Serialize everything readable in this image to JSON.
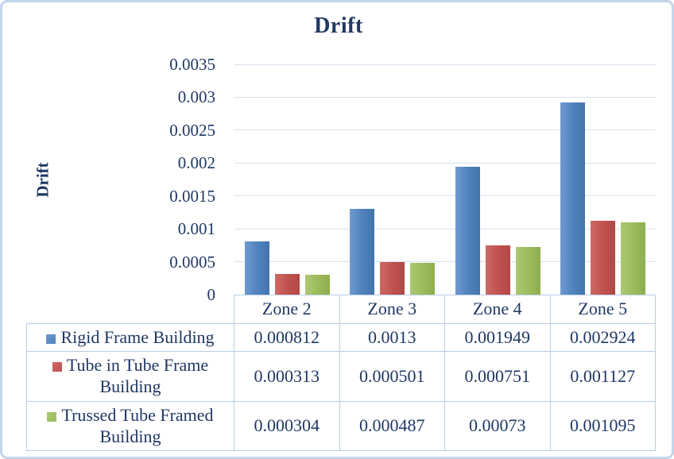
{
  "window": {
    "background": "#FFFFFF",
    "frame_border_color": "#C3D5EA",
    "text_color": "#1F3864",
    "gridline_color": "#D7E2EF",
    "table_border_color": "#B9CDE4"
  },
  "chart_data": {
    "type": "bar",
    "title": "Drift",
    "ylabel": "Drift",
    "xlabel": "",
    "categories": [
      "Zone 2",
      "Zone 3",
      "Zone 4",
      "Zone 5"
    ],
    "series": [
      {
        "name": "Rigid Frame Building",
        "color": "#4F81BD",
        "fill": {
          "light": "#6E9AD0",
          "base": "#4F81BD",
          "dark": "#4574AC"
        },
        "values": [
          0.000812,
          0.0013,
          0.001949,
          0.002924
        ],
        "labels": [
          "0.000812",
          "0.0013",
          "0.001949",
          "0.002924"
        ]
      },
      {
        "name": "Tube in Tube Frame Building",
        "color": "#C0504D",
        "fill": {
          "light": "#CD6965",
          "base": "#C0504D",
          "dark": "#AF4946"
        },
        "values": [
          0.000313,
          0.000501,
          0.000751,
          0.001127
        ],
        "labels": [
          "0.000313",
          "0.000501",
          "0.000751",
          "0.001127"
        ]
      },
      {
        "name": "Trussed Tube Framed Building",
        "color": "#9BBB59",
        "fill": {
          "light": "#ACC873",
          "base": "#9BBB59",
          "dark": "#8EAE4F"
        },
        "values": [
          0.000304,
          0.000487,
          0.00073,
          0.001095
        ],
        "labels": [
          "0.000304",
          "0.000487",
          "0.00073",
          "0.001095"
        ]
      }
    ],
    "ylim": [
      0,
      0.0035
    ],
    "y_ticks": [
      "0",
      "0.0005",
      "0.001",
      "0.0015",
      "0.002",
      "0.0025",
      "0.003",
      "0.0035"
    ],
    "grid": true,
    "legend_position": "left-column-of-data-table"
  }
}
